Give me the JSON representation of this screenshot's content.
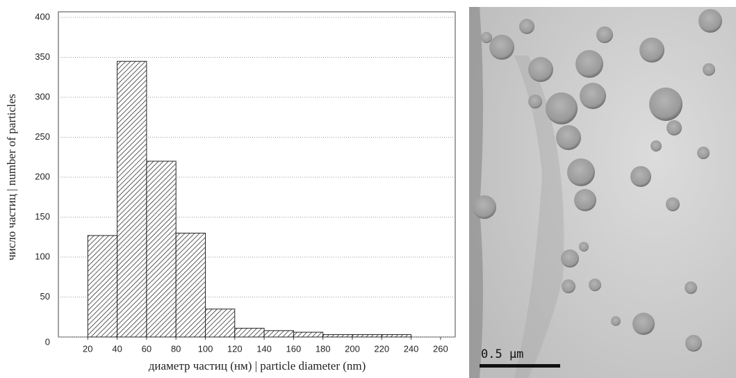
{
  "chart_data": {
    "type": "histogram",
    "x_label": "диаметр частиц (нм) | particle diameter (nm)",
    "y_label": "число частиц | number of particles",
    "bins": [
      20,
      40,
      60,
      80,
      100,
      120,
      140,
      160,
      180,
      200,
      220,
      240
    ],
    "values": [
      127,
      345,
      220,
      130,
      35,
      11,
      8,
      6,
      3,
      3,
      3
    ],
    "xlim": [
      0,
      270
    ],
    "xticks": [
      20,
      40,
      60,
      80,
      100,
      120,
      140,
      160,
      180,
      200,
      220,
      240,
      260
    ],
    "ylim": [
      0,
      400
    ],
    "yticks": [
      0,
      50,
      100,
      150,
      200,
      250,
      300,
      350,
      400
    ],
    "grid": true
  },
  "micrograph": {
    "scale_label": "0.5 μm"
  }
}
